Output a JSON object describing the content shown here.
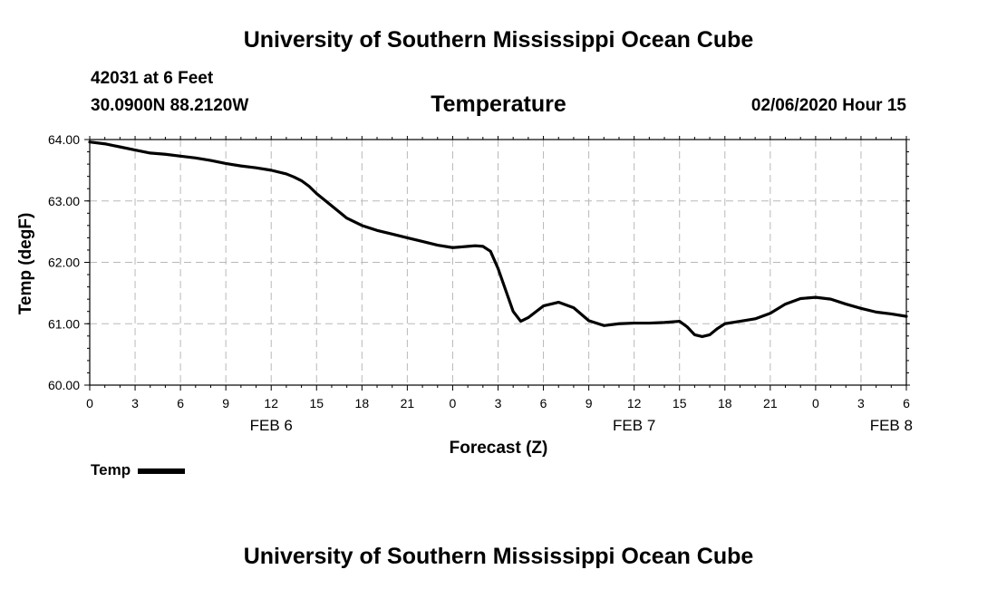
{
  "header": {
    "org_title": "University of Southern Mississippi Ocean Cube",
    "station": "42031 at 6 Feet",
    "coords": "30.0900N 88.2120W",
    "timestamp": "02/06/2020 Hour 15"
  },
  "footer": {
    "org_title": "University of Southern Mississippi Ocean Cube"
  },
  "chart_data": {
    "type": "line",
    "title": "Temperature",
    "xlabel": "Forecast (Z)",
    "ylabel": "Temp (degF)",
    "ylim": [
      60.0,
      64.0
    ],
    "xlim": [
      0,
      54
    ],
    "y_ticks": [
      "60.00",
      "61.00",
      "62.00",
      "63.00",
      "64.00"
    ],
    "y_tick_values": [
      60,
      61,
      62,
      63,
      64
    ],
    "x_tick_values": [
      0,
      3,
      6,
      9,
      12,
      15,
      18,
      21,
      24,
      27,
      30,
      33,
      36,
      39,
      42,
      45,
      48,
      51,
      54
    ],
    "x_tick_labels": [
      "0",
      "3",
      "6",
      "9",
      "12",
      "15",
      "18",
      "21",
      "0",
      "3",
      "6",
      "9",
      "12",
      "15",
      "18",
      "21",
      "0",
      "3",
      "6"
    ],
    "date_labels": [
      {
        "label": "FEB 6",
        "x": 12
      },
      {
        "label": "FEB 7",
        "x": 36
      },
      {
        "label": "FEB 8",
        "x": 53
      }
    ],
    "grid": true,
    "legend_position": "bottom-left",
    "series": [
      {
        "name": "Temp",
        "color": "#000000",
        "x": [
          0,
          1,
          2,
          3,
          4,
          5,
          6,
          7,
          8,
          9,
          10,
          11,
          12,
          13,
          13.5,
          14,
          14.5,
          15,
          16,
          17,
          18,
          19,
          20,
          21,
          22,
          23,
          24,
          25,
          25.5,
          26,
          26.5,
          27,
          27.5,
          28,
          28.5,
          29,
          30,
          31,
          32,
          33,
          34,
          35,
          36,
          37,
          38,
          39,
          39.5,
          40,
          40.5,
          41,
          41.5,
          42,
          43,
          44,
          45,
          46,
          47,
          48,
          49,
          50,
          51,
          52,
          53,
          54
        ],
        "values": [
          63.96,
          63.93,
          63.88,
          63.83,
          63.78,
          63.76,
          63.73,
          63.7,
          63.66,
          63.61,
          63.57,
          63.54,
          63.5,
          63.44,
          63.39,
          63.33,
          63.24,
          63.12,
          62.92,
          62.72,
          62.6,
          62.52,
          62.46,
          62.4,
          62.34,
          62.28,
          62.24,
          62.26,
          62.27,
          62.26,
          62.18,
          61.9,
          61.55,
          61.2,
          61.04,
          61.1,
          61.29,
          61.35,
          61.26,
          61.05,
          60.97,
          61.0,
          61.01,
          61.01,
          61.02,
          61.04,
          60.95,
          60.82,
          60.79,
          60.82,
          60.92,
          61.0,
          61.04,
          61.08,
          61.17,
          61.32,
          61.41,
          61.43,
          61.4,
          61.32,
          61.25,
          61.19,
          61.16,
          61.12
        ]
      }
    ]
  }
}
